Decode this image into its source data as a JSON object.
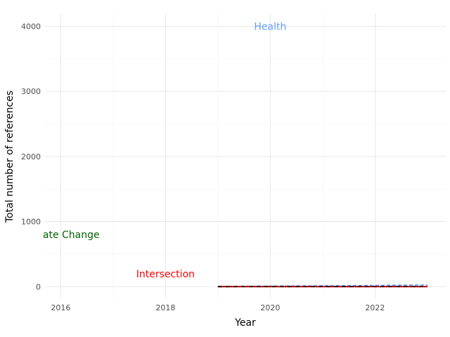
{
  "chart_data": {
    "type": "line",
    "xlabel": "Year",
    "ylabel": "Total number of references",
    "xlim": [
      2015.7,
      2023.35
    ],
    "ylim": [
      -180,
      4200
    ],
    "x_ticks": [
      "2016",
      "2018",
      "2020",
      "2022"
    ],
    "x_tick_values": [
      2016,
      2018,
      2020,
      2022
    ],
    "y_ticks": [
      "0",
      "1000",
      "2000",
      "3000",
      "4000"
    ],
    "y_tick_values": [
      0,
      1000,
      2000,
      3000,
      4000
    ],
    "grid": true,
    "x": [
      2019,
      2020,
      2021,
      2022,
      2023
    ],
    "series": [
      {
        "name": "Health",
        "values": [
          5,
          9,
          14,
          20,
          28
        ],
        "color": "#619CFF",
        "dash": "dashed"
      },
      {
        "name": "Climate Change",
        "values": [
          1,
          2,
          3,
          4,
          6
        ],
        "color": "#006400",
        "dash": "dashed"
      },
      {
        "name": "Intersection",
        "values": [
          0,
          0,
          0,
          1,
          1
        ],
        "color": "#FF0000",
        "dash": "solid"
      },
      {
        "name": "",
        "values": [
          0,
          1,
          1,
          2,
          3
        ],
        "color": "#000000",
        "dash": "dashdot"
      }
    ],
    "annotations": [
      {
        "text": "Health",
        "x": 2020,
        "y": 4000,
        "color": "#619CFF",
        "anchor": "middle"
      },
      {
        "text": "ate Change",
        "x": 2016.2,
        "y": 800,
        "color": "#006400",
        "anchor": "middle"
      },
      {
        "text": "Intersection",
        "x": 2018,
        "y": 200,
        "color": "#FF0000",
        "anchor": "middle"
      }
    ]
  }
}
